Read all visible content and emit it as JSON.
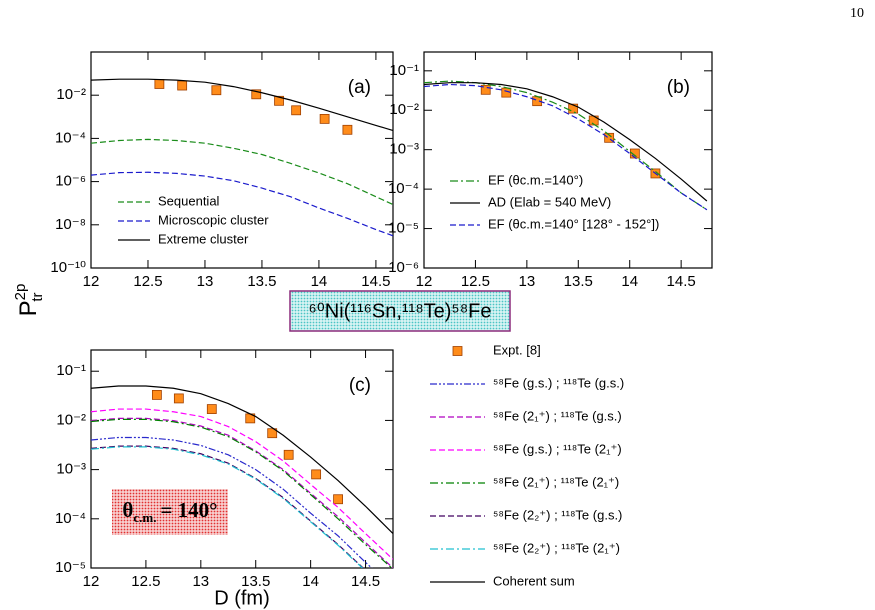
{
  "page_number": "10",
  "ylabel": "P",
  "ylabel_sub": "tr",
  "ylabel_sup": "2p",
  "reaction": "⁶⁰Ni(¹¹⁶Sn,¹¹⁸Te)⁵⁸Fe",
  "chart_data": [
    {
      "type": "line",
      "panel_label": "(a)",
      "log_y": true,
      "legend": "lower left",
      "x": [
        12,
        12.25,
        12.5,
        12.75,
        13,
        13.25,
        13.5,
        13.75,
        14,
        14.25,
        14.5,
        14.75
      ],
      "xlim": [
        12,
        14.65
      ],
      "xticks": [
        12,
        12.5,
        13,
        13.5,
        14,
        14.5
      ],
      "ylim": [
        1e-10,
        1
      ],
      "yticks": [
        {
          "value": 1e-10,
          "label": "10⁻¹⁰"
        },
        {
          "value": 1e-08,
          "label": "10⁻⁸"
        },
        {
          "value": 1e-06,
          "label": "10⁻⁶"
        },
        {
          "value": 0.0001,
          "label": "10⁻⁴"
        },
        {
          "value": 0.01,
          "label": "10⁻²"
        }
      ],
      "series": [
        {
          "marker": "square",
          "color": "#ff8c1a",
          "x": [
            12.6,
            12.8,
            13.1,
            13.45,
            13.65,
            13.8,
            14.05,
            14.25
          ],
          "values": [
            0.033,
            0.028,
            0.017,
            0.011,
            0.0055,
            0.002,
            0.0008,
            0.00025
          ]
        },
        {
          "name": "Sequential",
          "color": "#1a8c1a",
          "dash": "dashed",
          "values": [
            6e-05,
            8e-05,
            9e-05,
            8e-05,
            6e-05,
            3.5e-05,
            1.8e-05,
            7e-06,
            2.5e-06,
            8e-07,
            2e-07,
            5e-08
          ]
        },
        {
          "name": "Microscopic cluster",
          "color": "#1a1acc",
          "dash": "dashed",
          "values": [
            2e-06,
            2.6e-06,
            2.7e-06,
            2.4e-06,
            1.8e-06,
            1.1e-06,
            5e-07,
            2e-07,
            6e-08,
            2e-08,
            6e-09,
            2e-09
          ]
        },
        {
          "name": "Extreme cluster",
          "color": "#000000",
          "dash": "solid",
          "values": [
            0.05,
            0.055,
            0.055,
            0.05,
            0.04,
            0.025,
            0.013,
            0.006,
            0.0025,
            0.001,
            0.0004,
            0.00016
          ]
        }
      ]
    },
    {
      "type": "line",
      "panel_label": "(b)",
      "log_y": true,
      "legend": "lower center",
      "x": [
        12,
        12.25,
        12.5,
        12.75,
        13,
        13.25,
        13.5,
        13.75,
        14,
        14.25,
        14.5,
        14.75
      ],
      "xlim": [
        12,
        14.8
      ],
      "xticks": [
        12,
        12.5,
        13,
        13.5,
        14,
        14.5
      ],
      "ylim": [
        1e-06,
        0.3
      ],
      "yticks": [
        {
          "value": 1e-06,
          "label": "10⁻⁶"
        },
        {
          "value": 1e-05,
          "label": "10⁻⁵"
        },
        {
          "value": 0.0001,
          "label": "10⁻⁴"
        },
        {
          "value": 0.001,
          "label": "10⁻³"
        },
        {
          "value": 0.01,
          "label": "10⁻²"
        },
        {
          "value": 0.1,
          "label": "10⁻¹"
        }
      ],
      "series": [
        {
          "marker": "square",
          "color": "#ff8c1a",
          "x": [
            12.6,
            12.8,
            13.1,
            13.45,
            13.65,
            13.8,
            14.05,
            14.25
          ],
          "values": [
            0.033,
            0.028,
            0.017,
            0.011,
            0.0055,
            0.002,
            0.0008,
            0.00025
          ]
        },
        {
          "name": "EF (θc.m.=140°)",
          "color": "#1a8c1a",
          "dash": "dashdot",
          "values": [
            0.05,
            0.055,
            0.05,
            0.04,
            0.028,
            0.016,
            0.008,
            0.003,
            0.0009,
            0.00028,
            8e-05,
            3e-05
          ]
        },
        {
          "name": "AD (Elab = 540 MeV)",
          "color": "#000000",
          "dash": "solid",
          "values": [
            0.045,
            0.05,
            0.05,
            0.045,
            0.035,
            0.022,
            0.012,
            0.005,
            0.0018,
            0.0006,
            0.00018,
            5e-05
          ]
        },
        {
          "name": "EF (θc.m.=140° [128° - 152°])",
          "color": "#1a1acc",
          "dash": "dashed",
          "values": [
            0.04,
            0.045,
            0.042,
            0.033,
            0.022,
            0.013,
            0.006,
            0.0024,
            0.0008,
            0.00025,
            8e-05,
            3e-05
          ]
        }
      ]
    },
    {
      "type": "line",
      "panel_label": "(c)",
      "log_y": true,
      "legend": "right",
      "xlabel": "D (fm)",
      "annotation": {
        "symbol": "θ",
        "sub": "c.m.",
        "text": "= 140°"
      },
      "x": [
        12,
        12.25,
        12.5,
        12.75,
        13,
        13.25,
        13.5,
        13.75,
        14,
        14.25,
        14.5,
        14.75
      ],
      "xlim": [
        12,
        14.75
      ],
      "xticks": [
        12,
        12.5,
        13,
        13.5,
        14,
        14.5
      ],
      "ylim": [
        1e-05,
        0.27
      ],
      "yticks": [
        {
          "value": 1e-05,
          "label": "10⁻⁵"
        },
        {
          "value": 0.0001,
          "label": "10⁻⁴"
        },
        {
          "value": 0.001,
          "label": "10⁻³"
        },
        {
          "value": 0.01,
          "label": "10⁻²"
        },
        {
          "value": 0.1,
          "label": "10⁻¹"
        }
      ],
      "series": [
        {
          "name": "Expt. [8]",
          "marker": "square",
          "color": "#ff8c1a",
          "x": [
            12.6,
            12.8,
            13.1,
            13.45,
            13.65,
            13.8,
            14.05,
            14.25
          ],
          "values": [
            0.033,
            0.028,
            0.017,
            0.011,
            0.0055,
            0.002,
            0.0008,
            0.00025
          ]
        },
        {
          "name": "⁵⁸Fe (g.s.) ; ¹¹⁸Te (g.s.)",
          "color": "#2a2acc",
          "dash": "dashdotdot",
          "values": [
            0.004,
            0.0045,
            0.0045,
            0.004,
            0.0031,
            0.002,
            0.001,
            0.0004,
            0.00013,
            4.5e-05,
            1.3e-05,
            4e-06
          ]
        },
        {
          "name": "⁵⁸Fe (2₁⁺) ; ¹¹⁸Te (g.s.)",
          "color": "#b000c0",
          "dash": "dashed",
          "values": [
            0.0099,
            0.011,
            0.011,
            0.0099,
            0.0077,
            0.005,
            0.0024,
            0.001,
            0.00033,
            0.00011,
            3.3e-05,
            1e-05
          ]
        },
        {
          "name": "⁵⁸Fe (g.s.) ; ¹¹⁸Te (2₁⁺)",
          "color": "#ff00ff",
          "dash": "dashed",
          "values": [
            0.015,
            0.017,
            0.017,
            0.015,
            0.012,
            0.0075,
            0.0037,
            0.0015,
            0.0005,
            0.00017,
            5e-05,
            1.5e-05
          ]
        },
        {
          "name": "⁵⁸Fe (2₁⁺) ; ¹¹⁸Te (2₁⁺)",
          "color": "#008000",
          "dash": "dashdot",
          "values": [
            0.0095,
            0.0105,
            0.0105,
            0.0094,
            0.0073,
            0.0047,
            0.0023,
            0.00095,
            0.00031,
            0.0001,
            3e-05,
            9.5e-06
          ]
        },
        {
          "name": "⁵⁸Fe (2₂⁺) ; ¹¹⁸Te (g.s.)",
          "color": "#400060",
          "dash": "dashed",
          "values": [
            0.0027,
            0.003,
            0.003,
            0.0027,
            0.0021,
            0.00135,
            0.00066,
            0.00027,
            9e-05,
            3e-05,
            9e-06,
            2.7e-06
          ]
        },
        {
          "name": "⁵⁸Fe (2₂⁺) ; ¹¹⁸Te (2₁⁺)",
          "color": "#20c0d0",
          "dash": "dashdot",
          "values": [
            0.0026,
            0.0029,
            0.0029,
            0.0026,
            0.002,
            0.0013,
            0.00064,
            0.00026,
            8.7e-05,
            2.9e-05,
            8.7e-06,
            2.6e-06
          ]
        },
        {
          "name": "Coherent sum",
          "color": "#000000",
          "dash": "solid",
          "values": [
            0.045,
            0.05,
            0.05,
            0.045,
            0.035,
            0.022,
            0.012,
            0.005,
            0.0018,
            0.0006,
            0.00018,
            5e-05
          ]
        }
      ]
    }
  ]
}
